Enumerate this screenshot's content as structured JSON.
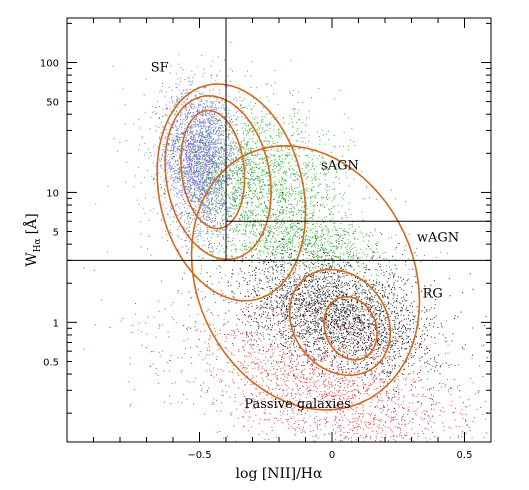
{
  "chart_data": {
    "type": "scatter",
    "title": "",
    "xlabel": "log [NII]/Hα",
    "ylabel": "W",
    "ylabel_subscript": "Hα",
    "ylabel_unit": "[Å]",
    "xlim": [
      -1.0,
      0.6
    ],
    "ylim": [
      0.12,
      220
    ],
    "yscale": "log",
    "grid": false,
    "x_ticks": [
      -0.5,
      0,
      0.5
    ],
    "x_tick_labels": [
      "−0.5",
      "0",
      "0.5"
    ],
    "y_ticks": [
      0.5,
      1,
      5,
      10,
      50,
      100
    ],
    "y_tick_labels": [
      "0.5",
      "1",
      "5",
      "10",
      "50",
      "100"
    ],
    "dividers": {
      "x_vertical": -0.4,
      "y_horizontal_low": 3.0,
      "y_horizontal_high": 6.0
    },
    "region_labels": [
      {
        "text": "SF",
        "x": -0.65,
        "y": 85
      },
      {
        "text": "sAGN",
        "x": 0.03,
        "y": 15
      },
      {
        "text": "wAGN",
        "x": 0.4,
        "y": 4.2
      },
      {
        "text": "RG",
        "x": 0.38,
        "y": 1.55
      },
      {
        "text": "Passive galaxies",
        "x": -0.13,
        "y": 0.22
      }
    ],
    "series": [
      {
        "class": "SF",
        "color": "#6a5fd6",
        "center": [
          -0.5,
          18
        ],
        "spread": [
          0.07,
          0.28
        ],
        "tilt": -0.5,
        "n": 2600
      },
      {
        "class": "sAGN",
        "color": "#1aa31a",
        "center": [
          -0.28,
          12
        ],
        "spread": [
          0.17,
          0.3
        ],
        "tilt": -0.45,
        "n": 2400
      },
      {
        "class": "wAGN",
        "color": "#1aa31a",
        "center": [
          -0.1,
          4.2
        ],
        "spread": [
          0.18,
          0.1
        ],
        "tilt": -0.3,
        "n": 650
      },
      {
        "class": "RG",
        "color": "#000000",
        "center": [
          0.02,
          1.15
        ],
        "spread": [
          0.18,
          0.22
        ],
        "tilt": -0.45,
        "n": 3000
      },
      {
        "class": "Passive",
        "color": "#e02020",
        "center": [
          0.0,
          0.3
        ],
        "spread": [
          0.3,
          0.3
        ],
        "tilt": -0.55,
        "n": 2200
      }
    ],
    "contours": {
      "color": "#d2691e",
      "levels": [
        {
          "center": [
            -0.45,
            15
          ],
          "rx": 0.12,
          "ry": 0.45,
          "tilt": -0.55
        },
        {
          "center": [
            -0.43,
            13
          ],
          "rx": 0.2,
          "ry": 0.62,
          "tilt": -0.55
        },
        {
          "center": [
            -0.38,
            10
          ],
          "rx": 0.28,
          "ry": 0.82,
          "tilt": -0.55
        },
        {
          "center": [
            0.07,
            0.9
          ],
          "rx": 0.1,
          "ry": 0.24,
          "tilt": -0.4
        },
        {
          "center": [
            0.03,
            1.0
          ],
          "rx": 0.19,
          "ry": 0.4,
          "tilt": -0.4
        },
        {
          "center": [
            -0.1,
            2.2
          ],
          "rx": 0.43,
          "ry": 1.0,
          "tilt": -0.42
        }
      ]
    }
  }
}
